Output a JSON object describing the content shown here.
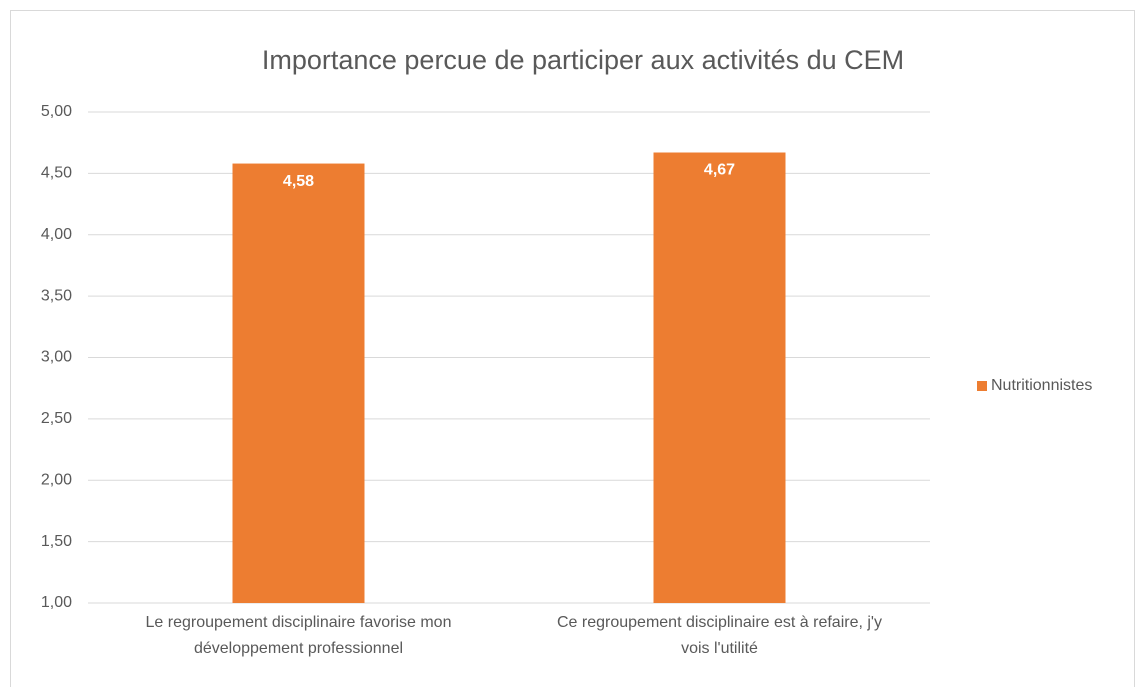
{
  "chart_data": {
    "type": "bar",
    "title": "Importance percue de participer aux activités du CEM",
    "categories": [
      "Le regroupement disciplinaire favorise mon développement professionnel",
      "Ce regroupement disciplinaire est à refaire, j'y vois l'utilité"
    ],
    "series": [
      {
        "name": "Nutritionnistes",
        "color": "#ed7d31",
        "values": [
          4.58,
          4.67
        ],
        "value_labels": [
          "4,58",
          "4,67"
        ]
      }
    ],
    "ylim": [
      1,
      5
    ],
    "yticks": [
      {
        "value": 1,
        "label": "1,00"
      },
      {
        "value": 1.5,
        "label": "1,50"
      },
      {
        "value": 2,
        "label": "2,00"
      },
      {
        "value": 2.5,
        "label": "2,50"
      },
      {
        "value": 3,
        "label": "3,00"
      },
      {
        "value": 3.5,
        "label": "3,50"
      },
      {
        "value": 4,
        "label": "4,00"
      },
      {
        "value": 4.5,
        "label": "4,50"
      },
      {
        "value": 5,
        "label": "5,00"
      }
    ],
    "grid": true,
    "legend": "right"
  }
}
